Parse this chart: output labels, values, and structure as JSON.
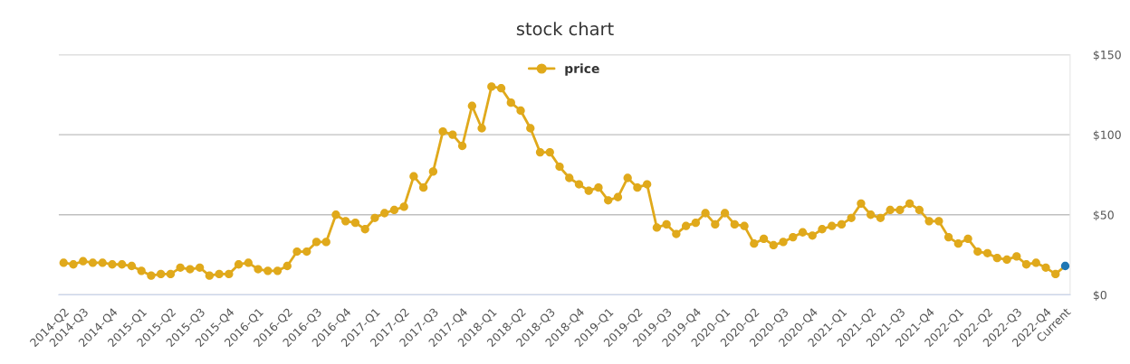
{
  "chart_data": {
    "type": "line",
    "title": "stock chart",
    "categories": [
      "2014-Q2",
      null,
      "2014-Q3",
      null,
      null,
      "2014-Q4",
      null,
      null,
      "2015-Q1",
      null,
      null,
      "2015-Q2",
      null,
      null,
      "2015-Q3",
      null,
      null,
      "2015-Q4",
      null,
      null,
      "2016-Q1",
      null,
      null,
      "2016-Q2",
      null,
      null,
      "2016-Q3",
      null,
      null,
      "2016-Q4",
      null,
      null,
      "2017-Q1",
      null,
      null,
      "2017-Q2",
      null,
      null,
      "2017-Q3",
      null,
      null,
      "2017-Q4",
      null,
      null,
      "2018-Q1",
      null,
      null,
      "2018-Q2",
      null,
      null,
      "2018-Q3",
      null,
      null,
      "2018-Q4",
      null,
      null,
      "2019-Q1",
      null,
      null,
      "2019-Q2",
      null,
      null,
      "2019-Q3",
      null,
      null,
      "2019-Q4",
      null,
      null,
      "2020-Q1",
      null,
      null,
      "2020-Q2",
      null,
      null,
      "2020-Q3",
      null,
      null,
      "2020-Q4",
      null,
      null,
      "2021-Q1",
      null,
      null,
      "2021-Q2",
      null,
      null,
      "2021-Q3",
      null,
      null,
      "2021-Q4",
      null,
      null,
      "2022-Q1",
      null,
      null,
      "2022-Q2",
      null,
      null,
      "2022-Q3",
      null,
      null,
      "2022-Q4",
      null,
      "Current"
    ],
    "series": [
      {
        "name": "price",
        "color": "#e0a91b",
        "colors": [
          "#e0a91b",
          "#e0a91b",
          "#e0a91b",
          "#e0a91b",
          "#e0a91b",
          "#e0a91b",
          "#e0a91b",
          "#e0a91b",
          "#e0a91b",
          "#e0a91b",
          "#e0a91b",
          "#e0a91b",
          "#e0a91b",
          "#e0a91b",
          "#e0a91b",
          "#e0a91b",
          "#e0a91b",
          "#e0a91b",
          "#e0a91b",
          "#e0a91b",
          "#e0a91b",
          "#e0a91b",
          "#e0a91b",
          "#e0a91b",
          "#e0a91b",
          "#e0a91b",
          "#e0a91b",
          "#e0a91b",
          "#e0a91b",
          "#e0a91b",
          "#e0a91b",
          "#e0a91b",
          "#e0a91b",
          "#e0a91b",
          "#e0a91b",
          "#e0a91b",
          "#e0a91b",
          "#e0a91b",
          "#e0a91b",
          "#e0a91b",
          "#e0a91b",
          "#e0a91b",
          "#e0a91b",
          "#e0a91b",
          "#e0a91b",
          "#e0a91b",
          "#e0a91b",
          "#e0a91b",
          "#e0a91b",
          "#e0a91b",
          "#e0a91b",
          "#e0a91b",
          "#e0a91b",
          "#e0a91b",
          "#e0a91b",
          "#e0a91b",
          "#e0a91b",
          "#e0a91b",
          "#e0a91b",
          "#e0a91b",
          "#e0a91b",
          "#e0a91b",
          "#e0a91b",
          "#e0a91b",
          "#e0a91b",
          "#e0a91b",
          "#e0a91b",
          "#e0a91b",
          "#e0a91b",
          "#e0a91b",
          "#e0a91b",
          "#e0a91b",
          "#e0a91b",
          "#e0a91b",
          "#e0a91b",
          "#e0a91b",
          "#e0a91b",
          "#e0a91b",
          "#e0a91b",
          "#e0a91b",
          "#e0a91b",
          "#e0a91b",
          "#e0a91b",
          "#e0a91b",
          "#e0a91b",
          "#e0a91b",
          "#e0a91b",
          "#e0a91b",
          "#e0a91b",
          "#e0a91b",
          "#e0a91b",
          "#e0a91b",
          "#e0a91b",
          "#e0a91b",
          "#e0a91b",
          "#e0a91b",
          "#e0a91b",
          "#e0a91b",
          "#e0a91b",
          "#e0a91b",
          "#e0a91b",
          "#e0a91b",
          "#e0a91b",
          "#1f77b4"
        ],
        "values": [
          20,
          19,
          21,
          20,
          20,
          19,
          19,
          18,
          15,
          12,
          13,
          13,
          17,
          16,
          17,
          12,
          13,
          13,
          19,
          20,
          16,
          15,
          15,
          18,
          27,
          27,
          33,
          33,
          50,
          46,
          45,
          41,
          48,
          51,
          53,
          55,
          74,
          67,
          77,
          102,
          100,
          93,
          118,
          104,
          130,
          129,
          120,
          115,
          104,
          89,
          89,
          80,
          73,
          69,
          65,
          67,
          59,
          61,
          73,
          67,
          69,
          42,
          44,
          38,
          43,
          45,
          51,
          44,
          51,
          44,
          43,
          32,
          35,
          31,
          33,
          36,
          39,
          37,
          41,
          43,
          44,
          48,
          57,
          50,
          48,
          53,
          53,
          57,
          53,
          46,
          46,
          36,
          32,
          35,
          27,
          26,
          23,
          22,
          24,
          19,
          20,
          17,
          13,
          18
        ]
      }
    ],
    "ylim": [
      0,
      150
    ],
    "yticks": [
      {
        "value": 0,
        "label": "$0"
      },
      {
        "value": 50,
        "label": "$50"
      },
      {
        "value": 100,
        "label": "$100"
      },
      {
        "value": 150,
        "label": "$150"
      }
    ],
    "grid": "y",
    "legend": "top",
    "marker": "circle",
    "line_style": "solid"
  }
}
